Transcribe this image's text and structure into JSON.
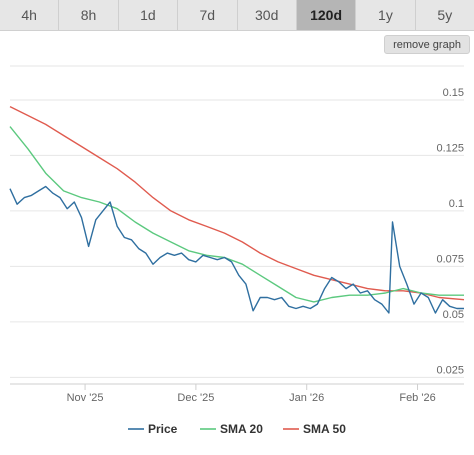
{
  "tabs": [
    {
      "label": "4h",
      "active": false
    },
    {
      "label": "8h",
      "active": false
    },
    {
      "label": "1d",
      "active": false
    },
    {
      "label": "7d",
      "active": false
    },
    {
      "label": "30d",
      "active": false
    },
    {
      "label": "120d",
      "active": true
    },
    {
      "label": "1y",
      "active": false
    },
    {
      "label": "5y",
      "active": false
    }
  ],
  "remove_graph_label": "remove graph",
  "chart_data": {
    "type": "line",
    "title": "",
    "xlabel": "",
    "ylabel": "",
    "x_ticks": [
      {
        "label": "Nov '25",
        "x": 21
      },
      {
        "label": "Dec '25",
        "x": 52
      },
      {
        "label": "Jan '26",
        "x": 83
      },
      {
        "label": "Feb '26",
        "x": 114
      }
    ],
    "y_ticks": [
      0.025,
      0.05,
      0.075,
      0.1,
      0.125,
      0.15
    ],
    "ylim": [
      0.022,
      0.168
    ],
    "xlim": [
      0,
      127
    ],
    "grid": true,
    "legend_position": "bottom",
    "series": [
      {
        "name": "Price",
        "color": "#2f6fa0",
        "values": [
          [
            0,
            0.11
          ],
          [
            2,
            0.103
          ],
          [
            4,
            0.106
          ],
          [
            6,
            0.107
          ],
          [
            8,
            0.109
          ],
          [
            10,
            0.111
          ],
          [
            12,
            0.108
          ],
          [
            14,
            0.106
          ],
          [
            16,
            0.101
          ],
          [
            18,
            0.104
          ],
          [
            20,
            0.097
          ],
          [
            22,
            0.084
          ],
          [
            24,
            0.096
          ],
          [
            26,
            0.1
          ],
          [
            28,
            0.104
          ],
          [
            30,
            0.093
          ],
          [
            32,
            0.088
          ],
          [
            34,
            0.087
          ],
          [
            36,
            0.083
          ],
          [
            38,
            0.081
          ],
          [
            40,
            0.076
          ],
          [
            42,
            0.079
          ],
          [
            44,
            0.081
          ],
          [
            46,
            0.08
          ],
          [
            48,
            0.081
          ],
          [
            50,
            0.078
          ],
          [
            52,
            0.077
          ],
          [
            54,
            0.08
          ],
          [
            56,
            0.079
          ],
          [
            58,
            0.078
          ],
          [
            60,
            0.079
          ],
          [
            62,
            0.077
          ],
          [
            64,
            0.071
          ],
          [
            66,
            0.067
          ],
          [
            68,
            0.055
          ],
          [
            70,
            0.061
          ],
          [
            72,
            0.061
          ],
          [
            74,
            0.06
          ],
          [
            76,
            0.061
          ],
          [
            78,
            0.057
          ],
          [
            80,
            0.056
          ],
          [
            82,
            0.057
          ],
          [
            84,
            0.056
          ],
          [
            86,
            0.058
          ],
          [
            88,
            0.065
          ],
          [
            90,
            0.07
          ],
          [
            92,
            0.068
          ],
          [
            94,
            0.065
          ],
          [
            96,
            0.067
          ],
          [
            98,
            0.063
          ],
          [
            100,
            0.064
          ],
          [
            102,
            0.06
          ],
          [
            104,
            0.058
          ],
          [
            106,
            0.054
          ],
          [
            107,
            0.095
          ],
          [
            109,
            0.075
          ],
          [
            111,
            0.067
          ],
          [
            113,
            0.058
          ],
          [
            115,
            0.063
          ],
          [
            117,
            0.061
          ],
          [
            119,
            0.054
          ],
          [
            121,
            0.06
          ],
          [
            123,
            0.057
          ],
          [
            125,
            0.056
          ],
          [
            127,
            0.056
          ]
        ]
      },
      {
        "name": "SMA 20",
        "color": "#5cc97f",
        "values": [
          [
            0,
            0.138
          ],
          [
            5,
            0.128
          ],
          [
            10,
            0.117
          ],
          [
            15,
            0.109
          ],
          [
            20,
            0.106
          ],
          [
            25,
            0.104
          ],
          [
            30,
            0.101
          ],
          [
            35,
            0.095
          ],
          [
            40,
            0.09
          ],
          [
            45,
            0.086
          ],
          [
            50,
            0.082
          ],
          [
            55,
            0.08
          ],
          [
            60,
            0.079
          ],
          [
            65,
            0.076
          ],
          [
            70,
            0.071
          ],
          [
            75,
            0.066
          ],
          [
            80,
            0.061
          ],
          [
            85,
            0.059
          ],
          [
            90,
            0.061
          ],
          [
            95,
            0.062
          ],
          [
            100,
            0.062
          ],
          [
            105,
            0.063
          ],
          [
            110,
            0.065
          ],
          [
            115,
            0.063
          ],
          [
            120,
            0.062
          ],
          [
            127,
            0.062
          ]
        ]
      },
      {
        "name": "SMA 50",
        "color": "#e05b4f",
        "values": [
          [
            0,
            0.147
          ],
          [
            5,
            0.143
          ],
          [
            10,
            0.139
          ],
          [
            15,
            0.134
          ],
          [
            20,
            0.129
          ],
          [
            25,
            0.124
          ],
          [
            30,
            0.119
          ],
          [
            35,
            0.113
          ],
          [
            40,
            0.106
          ],
          [
            45,
            0.1
          ],
          [
            50,
            0.096
          ],
          [
            55,
            0.093
          ],
          [
            60,
            0.09
          ],
          [
            65,
            0.086
          ],
          [
            70,
            0.081
          ],
          [
            75,
            0.077
          ],
          [
            80,
            0.074
          ],
          [
            85,
            0.071
          ],
          [
            90,
            0.069
          ],
          [
            95,
            0.067
          ],
          [
            100,
            0.065
          ],
          [
            105,
            0.064
          ],
          [
            110,
            0.064
          ],
          [
            115,
            0.063
          ],
          [
            120,
            0.061
          ],
          [
            127,
            0.06
          ]
        ]
      }
    ]
  }
}
